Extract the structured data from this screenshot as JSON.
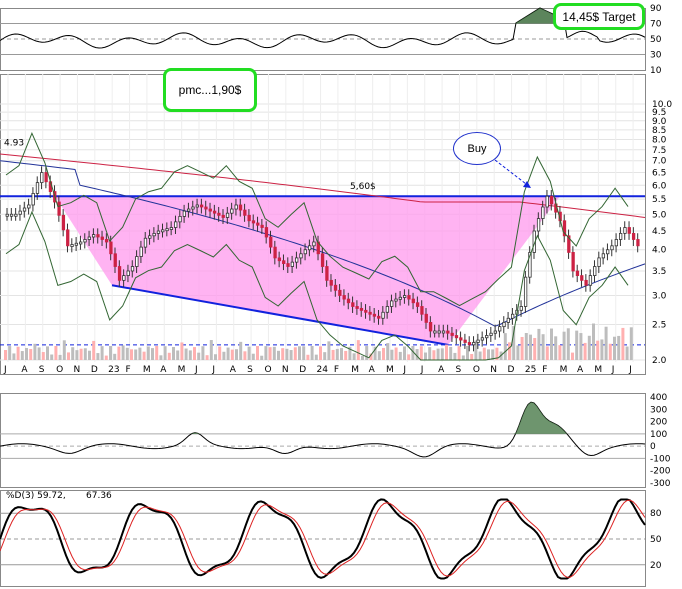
{
  "annotations": {
    "target": "14,45$ Target",
    "pmc": "pmc...1,90$",
    "buy": "Buy",
    "resistance": "5,60$",
    "high_marker": "4.93"
  },
  "colors": {
    "price_up": "#cc2244",
    "channel_fill": "#ff99ee",
    "trend_line": "#1122dd",
    "callout_border": "#22dd22",
    "ma_long": "#cc2244",
    "ma_mid": "#223399",
    "bollinger": "#336633",
    "rsi_fill": "#336633",
    "stoch_k": "#000000",
    "stoch_d": "#dd2222"
  },
  "x_axis": {
    "labels": [
      "J",
      "A",
      "S",
      "O",
      "N",
      "D",
      "23",
      "F",
      "M",
      "A",
      "M",
      "J",
      "J",
      "A",
      "S",
      "O",
      "N",
      "D",
      "24",
      "F",
      "M",
      "A",
      "M",
      "J",
      "J",
      "A",
      "S",
      "O",
      "N",
      "D",
      "25",
      "F",
      "M",
      "A",
      "M",
      "J",
      "J"
    ]
  },
  "rsi_panel": {
    "ticks": [
      "90",
      "70",
      "50",
      "30",
      "10"
    ]
  },
  "price_panel": {
    "ticks": [
      "10.0",
      "9.5",
      "9.0",
      "8.5",
      "8.0",
      "7.5",
      "7.0",
      "6.5",
      "6.0",
      "5.5",
      "5.0",
      "4.5",
      "4.0",
      "3.5",
      "3.0",
      "2.5",
      "2.0"
    ]
  },
  "macd_panel": {
    "ticks": [
      "400",
      "300",
      "200",
      "100",
      "0",
      "-100",
      "-200",
      "-300"
    ]
  },
  "stoch_panel": {
    "legend_k": "%D(3) 59.72,",
    "legend_d": "67.36",
    "ticks": [
      "80",
      "50",
      "20"
    ]
  },
  "chart_data": {
    "type": "candlestick",
    "price_series": [
      5.0,
      5.3,
      6.5,
      5.4,
      4.1,
      4.2,
      4.4,
      4.2,
      3.3,
      3.6,
      4.3,
      4.5,
      4.6,
      5.1,
      5.3,
      5.1,
      4.9,
      5.3,
      4.8,
      4.6,
      3.8,
      3.6,
      3.9,
      4.2,
      3.3,
      3.0,
      2.8,
      2.7,
      2.6,
      2.9,
      3.0,
      2.8,
      2.4,
      2.4,
      2.3,
      2.2,
      2.3,
      2.4,
      2.6,
      2.8,
      4.5,
      5.6,
      4.8,
      3.5,
      3.2,
      3.8,
      4.1,
      4.6,
      4.1
    ],
    "resistance": 5.6,
    "support_start": 3.2,
    "support_end": 2.2
  }
}
